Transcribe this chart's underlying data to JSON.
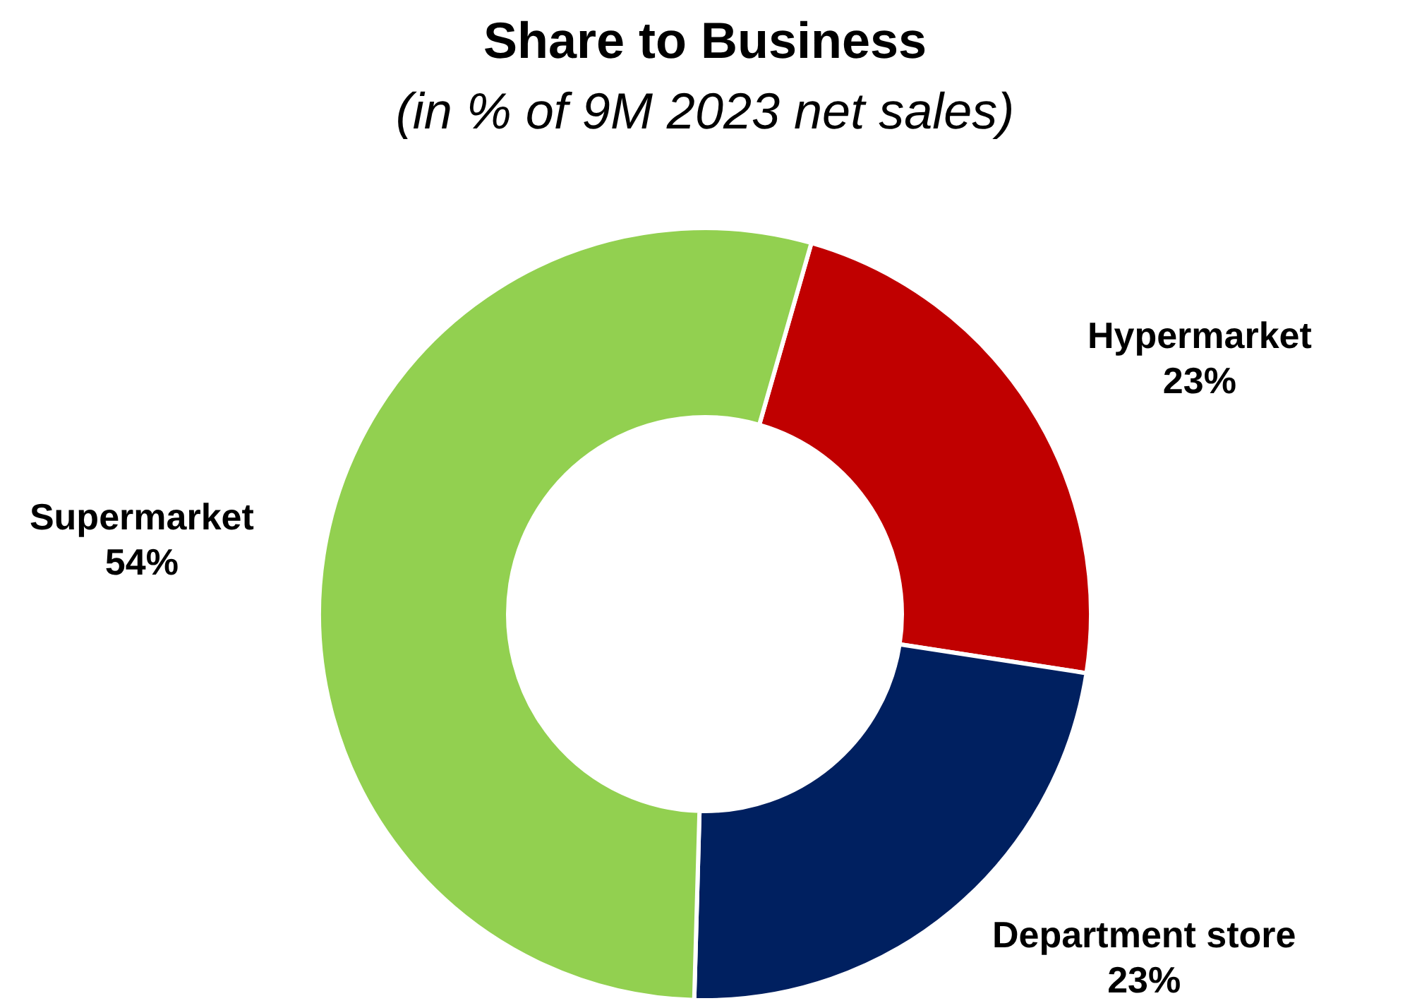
{
  "chart_data": {
    "type": "donut",
    "title": "Share to Business",
    "subtitle": "(in % of 9M 2023 net sales)",
    "categories": [
      "Hypermarket",
      "Department store",
      "Supermarket"
    ],
    "values": [
      23,
      23,
      54
    ],
    "colors": [
      "#c00000",
      "#002060",
      "#92d050"
    ],
    "value_labels": [
      "23%",
      "23%",
      "54%"
    ],
    "legend": false
  }
}
